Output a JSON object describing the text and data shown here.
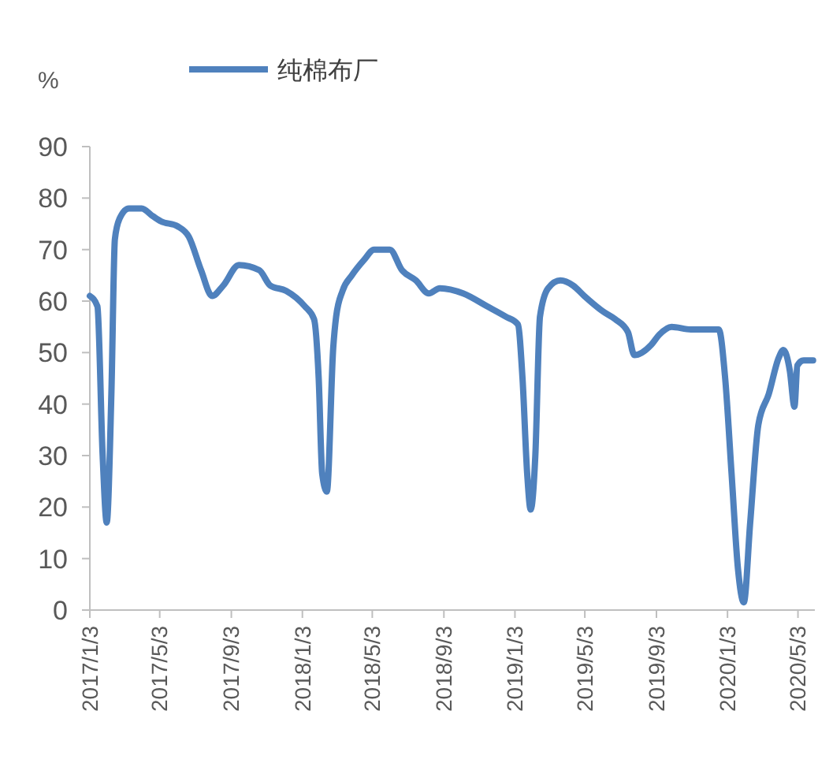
{
  "chart_data": {
    "type": "line",
    "ylabel": "%",
    "legend": "top",
    "marker": "none",
    "grid": false,
    "xlim": [
      "2017-01-03",
      "2020-06-01"
    ],
    "xticks": [
      {
        "value": "2017-01-03",
        "label": "2017/1/3"
      },
      {
        "value": "2017-05-03",
        "label": "2017/5/3"
      },
      {
        "value": "2017-09-03",
        "label": "2017/9/3"
      },
      {
        "value": "2018-01-03",
        "label": "2018/1/3"
      },
      {
        "value": "2018-05-03",
        "label": "2018/5/3"
      },
      {
        "value": "2018-09-03",
        "label": "2018/9/3"
      },
      {
        "value": "2019-01-03",
        "label": "2019/1/3"
      },
      {
        "value": "2019-05-03",
        "label": "2019/5/3"
      },
      {
        "value": "2019-09-03",
        "label": "2019/9/3"
      },
      {
        "value": "2020-01-03",
        "label": "2020/1/3"
      },
      {
        "value": "2020-05-03",
        "label": "2020/5/3"
      }
    ],
    "ylim": [
      0,
      90
    ],
    "yticks": [
      0,
      10,
      20,
      30,
      40,
      50,
      60,
      70,
      80,
      90
    ],
    "series": [
      {
        "name": "纯棉布厂",
        "color": "#4f81bd",
        "line_style": "solid",
        "x": [
          "2017-01-03",
          "2017-01-16",
          "2017-01-25",
          "2017-02-01",
          "2017-02-09",
          "2017-02-15",
          "2017-02-23",
          "2017-03-11",
          "2017-04-02",
          "2017-04-21",
          "2017-05-05",
          "2017-06-03",
          "2017-06-22",
          "2017-07-13",
          "2017-08-01",
          "2017-08-20",
          "2017-09-16",
          "2017-10-21",
          "2017-11-09",
          "2017-12-06",
          "2018-01-07",
          "2018-01-23",
          "2018-01-31",
          "2018-02-06",
          "2018-02-14",
          "2018-02-25",
          "2018-03-02",
          "2018-03-13",
          "2018-03-29",
          "2018-04-19",
          "2018-05-06",
          "2018-06-02",
          "2018-06-23",
          "2018-07-17",
          "2018-08-08",
          "2018-08-27",
          "2018-10-06",
          "2018-11-16",
          "2018-12-18",
          "2019-01-08",
          "2019-01-16",
          "2019-01-24",
          "2019-01-30",
          "2019-02-07",
          "2019-02-15",
          "2019-03-01",
          "2019-03-22",
          "2019-04-13",
          "2019-05-02",
          "2019-06-03",
          "2019-06-24",
          "2019-07-16",
          "2019-07-27",
          "2019-08-25",
          "2019-09-08",
          "2019-09-29",
          "2019-11-01",
          "2019-12-19",
          "2019-12-30",
          "2020-01-10",
          "2020-01-21",
          "2020-01-31",
          "2020-02-11",
          "2020-02-25",
          "2020-03-14",
          "2020-03-31",
          "2020-04-08",
          "2020-04-19",
          "2020-04-27",
          "2020-05-02",
          "2020-05-13",
          "2020-05-29"
        ],
        "values": [
          61,
          59,
          30,
          17,
          42,
          72,
          76,
          78,
          78,
          76.5,
          75.5,
          74.5,
          72.5,
          66,
          61,
          63,
          67,
          66,
          63,
          62,
          59,
          56.5,
          45,
          26.5,
          23,
          51,
          57,
          62,
          65,
          68,
          70,
          70,
          66,
          64,
          61.5,
          62.5,
          61.5,
          59,
          57,
          55.5,
          45,
          26.5,
          19.5,
          30,
          57,
          62.5,
          64,
          63,
          61,
          58,
          56.5,
          54,
          49.5,
          51.5,
          53.5,
          55,
          54.5,
          54.5,
          45,
          26.5,
          8,
          1.5,
          17,
          36,
          42,
          49,
          50.5,
          46.5,
          39.5,
          47.5,
          48.5,
          48.5
        ]
      }
    ]
  }
}
